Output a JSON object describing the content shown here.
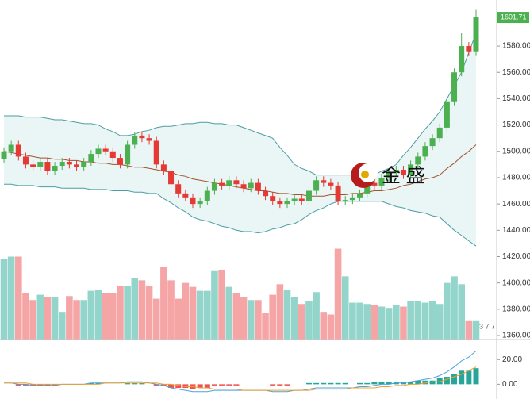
{
  "chart_data": [
    {
      "type": "candlestick",
      "up_color": "#4caf50",
      "down_color": "#e53935",
      "open": [
        1494,
        1500,
        1505,
        1496,
        1490,
        1488,
        1492,
        1485,
        1489,
        1492,
        1490,
        1488,
        1492,
        1498,
        1502,
        1500,
        1495,
        1490,
        1505,
        1512,
        1510,
        1508,
        1490,
        1485,
        1475,
        1468,
        1465,
        1460,
        1462,
        1470,
        1476,
        1474,
        1478,
        1475,
        1472,
        1476,
        1470,
        1466,
        1462,
        1460,
        1462,
        1464,
        1462,
        1470,
        1478,
        1476,
        1474,
        1462,
        1463,
        1465,
        1468,
        1476,
        1474,
        1480,
        1484,
        1486,
        1482,
        1490,
        1496,
        1504,
        1510,
        1518,
        1538,
        1560,
        1580,
        1576
      ],
      "high": [
        1503,
        1508,
        1508,
        1499,
        1493,
        1495,
        1495,
        1492,
        1495,
        1495,
        1493,
        1495,
        1501,
        1505,
        1505,
        1503,
        1498,
        1508,
        1515,
        1515,
        1513,
        1511,
        1493,
        1488,
        1478,
        1471,
        1468,
        1465,
        1473,
        1479,
        1479,
        1481,
        1481,
        1478,
        1479,
        1479,
        1473,
        1469,
        1465,
        1465,
        1467,
        1467,
        1473,
        1481,
        1481,
        1479,
        1477,
        1466,
        1468,
        1471,
        1479,
        1479,
        1483,
        1487,
        1489,
        1489,
        1493,
        1499,
        1507,
        1513,
        1521,
        1541,
        1563,
        1590,
        1583,
        1608
      ],
      "low": [
        1491,
        1497,
        1493,
        1487,
        1485,
        1485,
        1482,
        1482,
        1486,
        1487,
        1485,
        1485,
        1489,
        1495,
        1497,
        1492,
        1487,
        1487,
        1502,
        1507,
        1505,
        1487,
        1482,
        1472,
        1465,
        1462,
        1457,
        1457,
        1459,
        1467,
        1471,
        1471,
        1472,
        1469,
        1469,
        1467,
        1463,
        1459,
        1457,
        1457,
        1459,
        1459,
        1459,
        1467,
        1473,
        1471,
        1459,
        1459,
        1460,
        1462,
        1465,
        1471,
        1471,
        1477,
        1481,
        1479,
        1479,
        1487,
        1493,
        1501,
        1507,
        1515,
        1535,
        1557,
        1573,
        1573
      ],
      "close": [
        1500,
        1505,
        1496,
        1490,
        1488,
        1492,
        1485,
        1489,
        1492,
        1490,
        1488,
        1492,
        1498,
        1502,
        1500,
        1495,
        1490,
        1505,
        1512,
        1510,
        1508,
        1490,
        1485,
        1475,
        1468,
        1465,
        1460,
        1462,
        1470,
        1476,
        1474,
        1478,
        1475,
        1472,
        1476,
        1470,
        1466,
        1462,
        1460,
        1462,
        1464,
        1462,
        1470,
        1478,
        1476,
        1474,
        1462,
        1463,
        1465,
        1468,
        1476,
        1474,
        1480,
        1484,
        1486,
        1482,
        1490,
        1496,
        1504,
        1510,
        1518,
        1538,
        1560,
        1580,
        1576,
        1601.71
      ],
      "series": [
        {
          "color": "#4a9ea3",
          "values": [
            1527,
            1527,
            1527,
            1526,
            1526,
            1526,
            1525,
            1524,
            1524,
            1523,
            1522,
            1521,
            1521,
            1520,
            1517,
            1515,
            1512,
            1512,
            1513,
            1515,
            1516,
            1518,
            1519,
            1519,
            1520,
            1521,
            1521,
            1522,
            1522,
            1521,
            1521,
            1520,
            1520,
            1518,
            1516,
            1514,
            1512,
            1510,
            1503,
            1497,
            1490,
            1487,
            1485,
            1482,
            1482,
            1482,
            1482,
            1482,
            1482,
            1482,
            1482,
            1482,
            1485,
            1487,
            1490,
            1497,
            1503,
            1510,
            1517,
            1523,
            1530,
            1540,
            1550,
            1560,
            1575,
            1590
          ]
        },
        {
          "color": "#a0522d",
          "values": [
            1500,
            1499,
            1498,
            1497,
            1496,
            1495,
            1495,
            1494,
            1494,
            1493,
            1493,
            1492,
            1492,
            1491,
            1491,
            1490,
            1490,
            1489,
            1488,
            1488,
            1487,
            1486,
            1485,
            1484,
            1482,
            1481,
            1479,
            1478,
            1477,
            1476,
            1475,
            1474,
            1473,
            1472,
            1471,
            1470,
            1470,
            1469,
            1468,
            1468,
            1467,
            1467,
            1466,
            1466,
            1466,
            1467,
            1467,
            1467,
            1468,
            1468,
            1469,
            1470,
            1470,
            1471,
            1472,
            1474,
            1475,
            1477,
            1479,
            1480,
            1482,
            1487,
            1491,
            1496,
            1500,
            1505
          ]
        },
        {
          "color": "#4a9ea3",
          "values": [
            1475,
            1475,
            1474,
            1474,
            1474,
            1473,
            1473,
            1473,
            1472,
            1472,
            1472,
            1472,
            1471,
            1471,
            1471,
            1470,
            1470,
            1470,
            1469,
            1469,
            1468,
            1468,
            1464,
            1461,
            1457,
            1454,
            1450,
            1448,
            1447,
            1445,
            1443,
            1442,
            1440,
            1439,
            1439,
            1438,
            1439,
            1441,
            1442,
            1444,
            1445,
            1448,
            1452,
            1455,
            1457,
            1460,
            1462,
            1462,
            1462,
            1462,
            1462,
            1462,
            1462,
            1460,
            1458,
            1457,
            1455,
            1454,
            1453,
            1451,
            1450,
            1445,
            1440,
            1436,
            1432,
            1428
          ]
        }
      ],
      "band_fill": "#eaf5f5",
      "ylim": [
        1357,
        1615
      ],
      "yticks": [
        {
          "value": 1580,
          "label": "1580.00"
        },
        {
          "value": 1560,
          "label": "1560.00"
        },
        {
          "value": 1540,
          "label": "1540.00"
        },
        {
          "value": 1520,
          "label": "1520.00"
        },
        {
          "value": 1500,
          "label": "1500.00"
        },
        {
          "value": 1480,
          "label": "1480.00"
        },
        {
          "value": 1460,
          "label": "1460.00"
        },
        {
          "value": 1440,
          "label": "1440.00"
        },
        {
          "value": 1420,
          "label": "1420.00"
        },
        {
          "value": 1400,
          "label": "1400.00"
        },
        {
          "value": 1380,
          "label": "1380.00"
        },
        {
          "value": 1360,
          "label": "1360.00"
        }
      ],
      "watermark": "金 盛",
      "badge": "3 7 7"
    },
    {
      "type": "volume",
      "up_color": "#93d5cb",
      "down_color": "#f5a5a5",
      "values": [
        1418,
        1420,
        1420,
        1392,
        1387,
        1391,
        1389,
        1389,
        1378,
        1390,
        1387,
        1387,
        1394,
        1395,
        1392,
        1392,
        1398,
        1398,
        1404,
        1402,
        1398,
        1388,
        1412,
        1402,
        1388,
        1400,
        1397,
        1394,
        1394,
        1409,
        1410,
        1397,
        1392,
        1389,
        1387,
        1387,
        1377,
        1391,
        1399,
        1395,
        1389,
        1384,
        1386,
        1393,
        1378,
        1376,
        1426,
        1405,
        1385,
        1385,
        1384,
        1383,
        1382,
        1381,
        1383,
        1382,
        1386,
        1386,
        1385,
        1386,
        1384,
        1400,
        1405,
        1399,
        1371,
        1371
      ],
      "ylim": [
        1357,
        1615
      ]
    },
    {
      "type": "macd",
      "up_color": "#26a69a",
      "down_color": "#ef5350",
      "values": [
        0,
        0,
        -1,
        -1,
        -1,
        -1,
        -1,
        -1,
        0,
        0,
        0,
        0,
        1,
        1,
        0,
        0,
        0,
        1,
        1,
        1,
        0,
        -1,
        -1,
        -3,
        -3,
        -3,
        -4,
        -3,
        -3,
        -1,
        -1,
        -1,
        -1,
        0,
        0,
        0,
        0,
        -1,
        -1,
        -1,
        0,
        0,
        1,
        1,
        1,
        1,
        1,
        1,
        0,
        1,
        1,
        2,
        2,
        2,
        2,
        2,
        2,
        3,
        3,
        3,
        5,
        6,
        8,
        11,
        11,
        13
      ],
      "series": [
        {
          "color": "#4aa3df",
          "values": [
            1,
            1,
            0,
            0,
            -1,
            -1,
            -1,
            -1,
            0,
            0,
            0,
            0,
            1,
            1,
            1,
            1,
            1,
            2,
            2,
            2,
            1,
            0,
            -1,
            -3,
            -4,
            -5,
            -6,
            -6,
            -6,
            -5,
            -5,
            -5,
            -5,
            -5,
            -5,
            -5,
            -5,
            -6,
            -6,
            -6,
            -5,
            -5,
            -4,
            -3,
            -3,
            -3,
            -3,
            -3,
            -3,
            -2,
            -2,
            -1,
            0,
            0,
            1,
            1,
            2,
            3,
            4,
            5,
            7,
            10,
            14,
            19,
            22,
            27
          ]
        },
        {
          "color": "#f0a030",
          "values": [
            1,
            1,
            1,
            1,
            0,
            0,
            0,
            0,
            0,
            0,
            0,
            0,
            0,
            0,
            1,
            1,
            1,
            1,
            1,
            1,
            1,
            1,
            0,
            0,
            -1,
            -2,
            -2,
            -3,
            -3,
            -4,
            -4,
            -4,
            -4,
            -5,
            -5,
            -5,
            -5,
            -5,
            -5,
            -5,
            -5,
            -5,
            -5,
            -4,
            -4,
            -4,
            -4,
            -4,
            -3,
            -3,
            -3,
            -3,
            -2,
            -2,
            -1,
            -1,
            0,
            0,
            1,
            2,
            2,
            4,
            6,
            8,
            11,
            14
          ]
        }
      ],
      "ylim": [
        -12,
        35
      ],
      "yticks": [
        {
          "value": 20,
          "label": "20.00"
        },
        {
          "value": 0,
          "label": "0.00"
        }
      ]
    }
  ]
}
